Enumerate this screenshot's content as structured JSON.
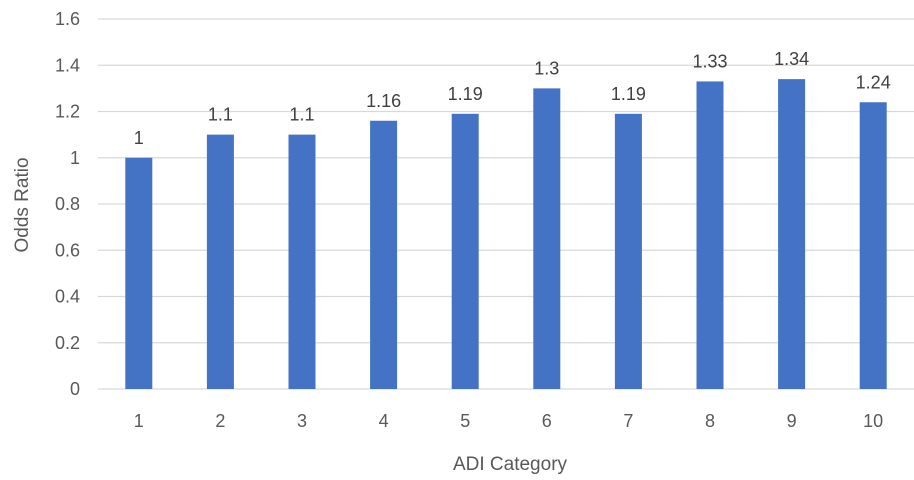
{
  "chart_data": {
    "type": "bar",
    "categories": [
      "1",
      "2",
      "3",
      "4",
      "5",
      "6",
      "7",
      "8",
      "9",
      "10"
    ],
    "values": [
      1,
      1.1,
      1.1,
      1.16,
      1.19,
      1.3,
      1.19,
      1.33,
      1.34,
      1.24
    ],
    "data_labels": [
      "1",
      "1.1",
      "1.1",
      "1.16",
      "1.19",
      "1.3",
      "1.19",
      "1.33",
      "1.34",
      "1.24"
    ],
    "y_ticks": [
      "0",
      "0.2",
      "0.4",
      "0.6",
      "0.8",
      "1",
      "1.2",
      "1.4",
      "1.6"
    ],
    "xlabel": "ADI Category",
    "ylabel": "Odds Ratio",
    "ylim": [
      0,
      1.6
    ],
    "grid": true,
    "legend": "none",
    "bar_color": "#4472c4"
  }
}
